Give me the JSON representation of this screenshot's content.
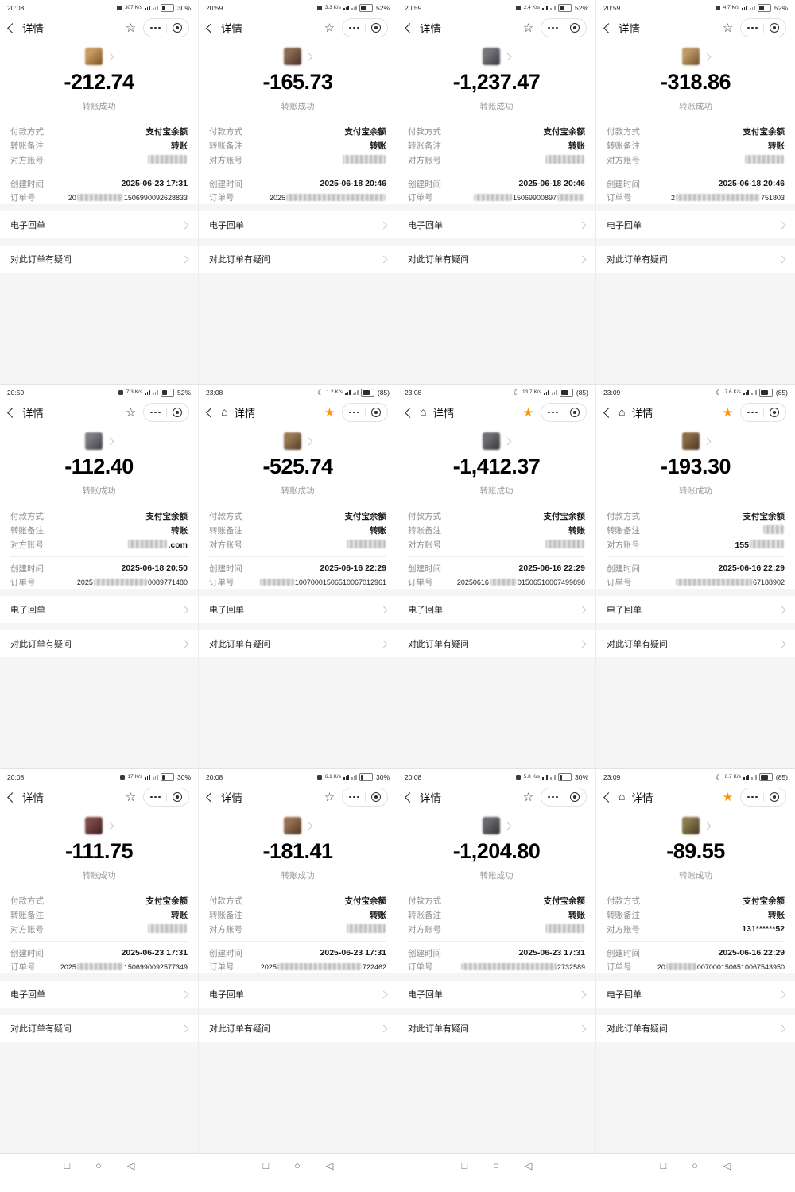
{
  "ui": {
    "nav_title": "详情",
    "labels": {
      "payment_method": "付款方式",
      "payment_value": "支付宝余额",
      "transfer_note": "转账备注",
      "note_value": "转账",
      "counterparty": "对方账号",
      "created_time": "创建时间",
      "order_no": "订单号",
      "status_success": "转账成功",
      "receipt_row": "电子回单",
      "question_row": "对此订单有疑问"
    },
    "glyphs": {
      "moon": "☾",
      "home": "⌂",
      "star_filled": "★",
      "star_outline": "☆"
    },
    "footer": {
      "recents": "□",
      "home": "○",
      "back": "◁"
    },
    "colors": {
      "star_orange": "#ff9500",
      "panel_gray": "#f5f5f6",
      "amount_black": "#000000",
      "label_gray": "#8c8c8c"
    }
  },
  "cells": [
    {
      "time": "20:08",
      "speed": "307 K/s",
      "battery": "30%",
      "bat_fill": 30,
      "moon": false,
      "home": false,
      "star_filled": false,
      "amount": "-212.74",
      "date": "2025-06-23 17:31",
      "note_blurred": false,
      "account": {
        "pre": "",
        "blur": 9,
        "suf": ""
      },
      "order": {
        "pre": "20",
        "b1": 12,
        "mid": "",
        "b2": 0,
        "suf": "1506990092628833"
      },
      "avatar": [
        "#c89a5e",
        "#7a5226"
      ]
    },
    {
      "time": "20:59",
      "speed": "3.3 K/s",
      "battery": "52%",
      "bat_fill": 52,
      "moon": false,
      "home": false,
      "star_filled": false,
      "amount": "-165.73",
      "date": "2025-06-18 20:46",
      "note_blurred": false,
      "account": {
        "pre": "",
        "blur": 10,
        "suf": ""
      },
      "order": {
        "pre": "2025",
        "b1": 26,
        "mid": "",
        "b2": 0,
        "suf": ""
      },
      "avatar": [
        "#8a6a52",
        "#46312a"
      ]
    },
    {
      "time": "20:59",
      "speed": "2.4 K/s",
      "battery": "52%",
      "bat_fill": 52,
      "moon": false,
      "home": false,
      "star_filled": false,
      "amount": "-1,237.47",
      "date": "2025-06-18 20:46",
      "note_blurred": false,
      "account": {
        "pre": "",
        "blur": 9,
        "suf": ""
      },
      "order": {
        "pre": "",
        "b1": 10,
        "mid": "15069900897",
        "b2": 7,
        "suf": ""
      },
      "avatar": [
        "#74747a",
        "#3a3a42"
      ]
    },
    {
      "time": "20:59",
      "speed": "4.7 K/s",
      "battery": "52%",
      "bat_fill": 52,
      "moon": false,
      "home": false,
      "star_filled": false,
      "amount": "-318.86",
      "date": "2025-06-18 20:46",
      "note_blurred": false,
      "account": {
        "pre": "",
        "blur": 9,
        "suf": ""
      },
      "order": {
        "pre": "2",
        "b1": 22,
        "mid": "",
        "b2": 0,
        "suf": "751803"
      },
      "avatar": [
        "#c09a66",
        "#6e4e2a"
      ]
    },
    {
      "time": "20:59",
      "speed": "7.3 K/s",
      "battery": "52%",
      "bat_fill": 52,
      "moon": false,
      "home": false,
      "star_filled": false,
      "amount": "-112.40",
      "date": "2025-06-18 20:50",
      "note_blurred": false,
      "account": {
        "pre": "",
        "blur": 9,
        "suf": ".com"
      },
      "order": {
        "pre": "2025",
        "b1": 14,
        "mid": "",
        "b2": 0,
        "suf": "0089771480"
      },
      "avatar": [
        "#7c7c84",
        "#3e3e46"
      ]
    },
    {
      "time": "23:08",
      "speed": "1.2 K/s",
      "battery": "(85)",
      "bat_fill": 85,
      "moon": true,
      "home": true,
      "star_filled": true,
      "amount": "-525.74",
      "date": "2025-06-16 22:29",
      "note_blurred": false,
      "account": {
        "pre": "",
        "blur": 9,
        "suf": ""
      },
      "order": {
        "pre": "",
        "b1": 9,
        "mid": "",
        "b2": 0,
        "suf": "10070001506510067012961"
      },
      "avatar": [
        "#9a7a56",
        "#553c24"
      ]
    },
    {
      "time": "23:08",
      "speed": "13.7 K/s",
      "battery": "(85)",
      "bat_fill": 85,
      "moon": true,
      "home": true,
      "star_filled": true,
      "amount": "-1,412.37",
      "date": "2025-06-16 22:29",
      "note_blurred": false,
      "account": {
        "pre": "",
        "blur": 9,
        "suf": ""
      },
      "order": {
        "pre": "20250616",
        "b1": 7,
        "mid": "",
        "b2": 0,
        "suf": "01506510067499898"
      },
      "avatar": [
        "#6c6c72",
        "#36363c"
      ]
    },
    {
      "time": "23:09",
      "speed": "7.6 K/s",
      "battery": "(85)",
      "bat_fill": 85,
      "moon": true,
      "home": true,
      "star_filled": true,
      "amount": "-193.30",
      "date": "2025-06-16 22:29",
      "note_blurred": true,
      "account": {
        "pre": "155",
        "blur": 8,
        "suf": ""
      },
      "order": {
        "pre": "",
        "b1": 20,
        "mid": "",
        "b2": 0,
        "suf": "67188902"
      },
      "avatar": [
        "#8c6a46",
        "#4a3420"
      ]
    },
    {
      "time": "20:08",
      "speed": "17 K/s",
      "battery": "30%",
      "bat_fill": 30,
      "moon": false,
      "home": false,
      "star_filled": false,
      "amount": "-111.75",
      "date": "2025-06-23 17:31",
      "note_blurred": false,
      "account": {
        "pre": "",
        "blur": 9,
        "suf": ""
      },
      "order": {
        "pre": "2025",
        "b1": 12,
        "mid": "",
        "b2": 0,
        "suf": "1506990092577349"
      },
      "avatar": [
        "#7c4a48",
        "#38201e"
      ]
    },
    {
      "time": "20:08",
      "speed": "6.1 K/s",
      "battery": "30%",
      "bat_fill": 30,
      "moon": false,
      "home": false,
      "star_filled": false,
      "amount": "-181.41",
      "date": "2025-06-23 17:31",
      "note_blurred": false,
      "account": {
        "pre": "",
        "blur": 9,
        "suf": ""
      },
      "order": {
        "pre": "2025",
        "b1": 22,
        "mid": "",
        "b2": 0,
        "suf": "722462"
      },
      "avatar": [
        "#9a7050",
        "#523822"
      ]
    },
    {
      "time": "20:08",
      "speed": "5.8 K/s",
      "battery": "30%",
      "bat_fill": 30,
      "moon": false,
      "home": false,
      "star_filled": false,
      "amount": "-1,204.80",
      "date": "2025-06-23 17:31",
      "note_blurred": false,
      "account": {
        "pre": "",
        "blur": 9,
        "suf": ""
      },
      "order": {
        "pre": "",
        "b1": 25,
        "mid": "",
        "b2": 0,
        "suf": "2732589"
      },
      "avatar": [
        "#68686e",
        "#333339"
      ]
    },
    {
      "time": "23:09",
      "speed": "6.7 K/s",
      "battery": "(85)",
      "bat_fill": 85,
      "moon": true,
      "home": true,
      "star_filled": true,
      "amount": "-89.55",
      "date": "2025-06-16 22:29",
      "note_blurred": false,
      "account": {
        "pre": "131******52",
        "blur": 0,
        "suf": ""
      },
      "order": {
        "pre": "20",
        "b1": 8,
        "mid": "",
        "b2": 0,
        "suf": "0070001506510067543950"
      },
      "avatar": [
        "#8a7a50",
        "#463a20"
      ]
    }
  ]
}
